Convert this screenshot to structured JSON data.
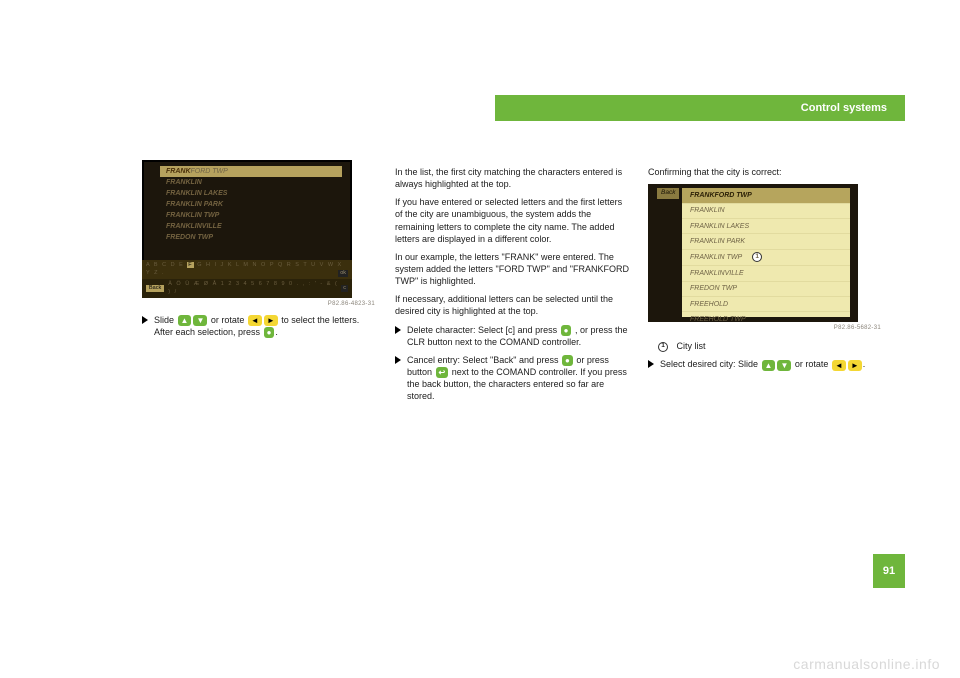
{
  "header": {
    "title": "Control systems"
  },
  "page_number": "91",
  "watermark": "carmanualsonline.info",
  "col1": {
    "screen": {
      "rows": [
        {
          "pre": "FRANK",
          "suf": "FORD TWP",
          "selected": true
        },
        {
          "pre": "FRANKLIN",
          "suf": "",
          "selected": false
        },
        {
          "pre": "FRANKLIN LAKES",
          "suf": "",
          "selected": false
        },
        {
          "pre": "FRANKLIN PARK",
          "suf": "",
          "selected": false
        },
        {
          "pre": "FRANKLIN TWP",
          "suf": "",
          "selected": false
        },
        {
          "pre": "FRANKLINVILLE",
          "suf": "",
          "selected": false
        },
        {
          "pre": "FREDON TWP",
          "suf": "",
          "selected": false
        }
      ],
      "alpha1_pre": "A B C D E ",
      "alpha1_hl": "F",
      "alpha1_mid": " G H I J K ",
      "alpha1_hl2": "L",
      "alpha1_post": " M N O P Q R S T U V W X Y Z .",
      "ok_label": "ok",
      "back_label": "Back",
      "alpha2": "Ä Ö Ü Æ Ø Å 1 2 3 4 5 6 7 8 9 0 . , : ' - & ( ) /",
      "del_label": "c",
      "ref": "P82.86-4823-31"
    },
    "instr_pre": "Slide ",
    "instr_mid": " or rotate ",
    "instr_post": " to select the letters. After each selection, press ",
    "instr_end": "."
  },
  "col2": {
    "p1": "In the list, the first city matching the characters entered is always highlighted at the top.",
    "p2": "If you have entered or selected letters and the first letters of the city are unambiguous, the system adds the remaining letters to complete the city name. The added letters are displayed in a different color.",
    "p3": "In our example, the letters \"FRANK\" were entered. The system added the letters \"FORD TWP\" and \"FRANKFORD TWP\" is highlighted.",
    "p4": "If necessary, additional letters can be selected until the desired city is highlighted at the top.",
    "b1": "Delete character: Select [c] and press ",
    "b1_end": ", or press the CLR button next to the COMAND controller.",
    "b2": "Cancel entry: Select \"Back\" and press ",
    "b2_mid": " or press button ",
    "b2_end": " next to the COMAND controller. If you press the back button, the characters entered so far are stored."
  },
  "col3": {
    "lead": "Confirming that the city is correct:",
    "screen": {
      "back_label": "Back",
      "rows": [
        {
          "label": "FRANKFORD TWP",
          "selected": true
        },
        {
          "label": "FRANKLIN",
          "selected": false
        },
        {
          "label": "FRANKLIN LAKES",
          "selected": false
        },
        {
          "label": "FRANKLIN PARK",
          "selected": false
        },
        {
          "label": "FRANKLIN TWP",
          "selected": false,
          "marker": "1"
        },
        {
          "label": "FRANKLINVILLE",
          "selected": false
        },
        {
          "label": "FREDON TWP",
          "selected": false
        },
        {
          "label": "FREEHOLD",
          "selected": false
        },
        {
          "label": "FREEHOLD TWP",
          "selected": false
        }
      ],
      "ref": "P82.86-5682-31"
    },
    "legend_num": "1",
    "legend_text": "City list",
    "instr_pre": "Select desired city: Slide ",
    "instr_mid": " or rotate ",
    "instr_post": "."
  },
  "glyphs": {
    "slide_up": "▲",
    "slide_down": "▼",
    "rot_l": "◄",
    "rot_r": "►",
    "press": "●"
  }
}
